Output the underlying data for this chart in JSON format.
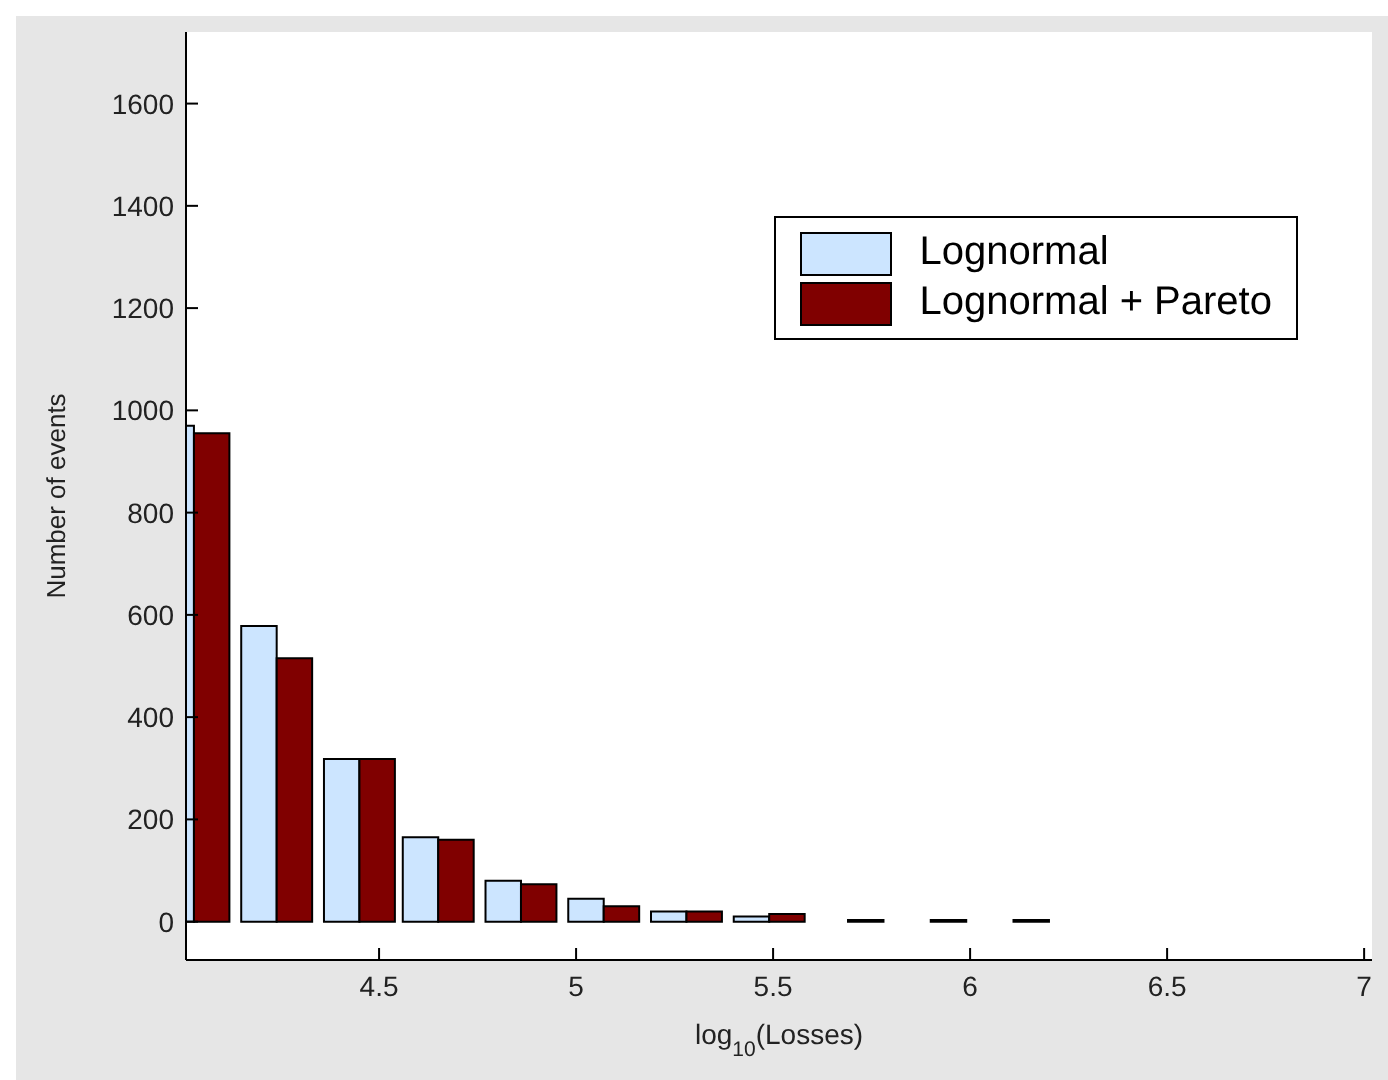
{
  "chart_data": {
    "type": "bar",
    "xlabel": "log$_{10}$(Losses)",
    "ylabel": "Number of events",
    "x": [
      4.03,
      4.24,
      4.45,
      4.65,
      4.86,
      5.07,
      5.28,
      5.49,
      5.69,
      5.9,
      6.11
    ],
    "series": [
      {
        "name": "Lognormal",
        "color": "#cce5ff",
        "values": [
          970,
          578,
          318,
          165,
          80,
          45,
          20,
          10,
          null,
          null,
          null
        ]
      },
      {
        "name": "Lognormal + Pareto",
        "color": "#800000",
        "values": [
          955,
          515,
          318,
          160,
          73,
          30,
          20,
          15,
          3,
          3,
          3
        ]
      }
    ],
    "xlim": [
      4.01,
      7.02
    ],
    "xticks": [
      4.5,
      5,
      5.5,
      6,
      6.5,
      7
    ],
    "ylim": [
      -75,
      1740
    ],
    "yticks": [
      0,
      200,
      400,
      600,
      800,
      1000,
      1200,
      1400,
      1600
    ],
    "grid": false,
    "legend": "top right"
  }
}
